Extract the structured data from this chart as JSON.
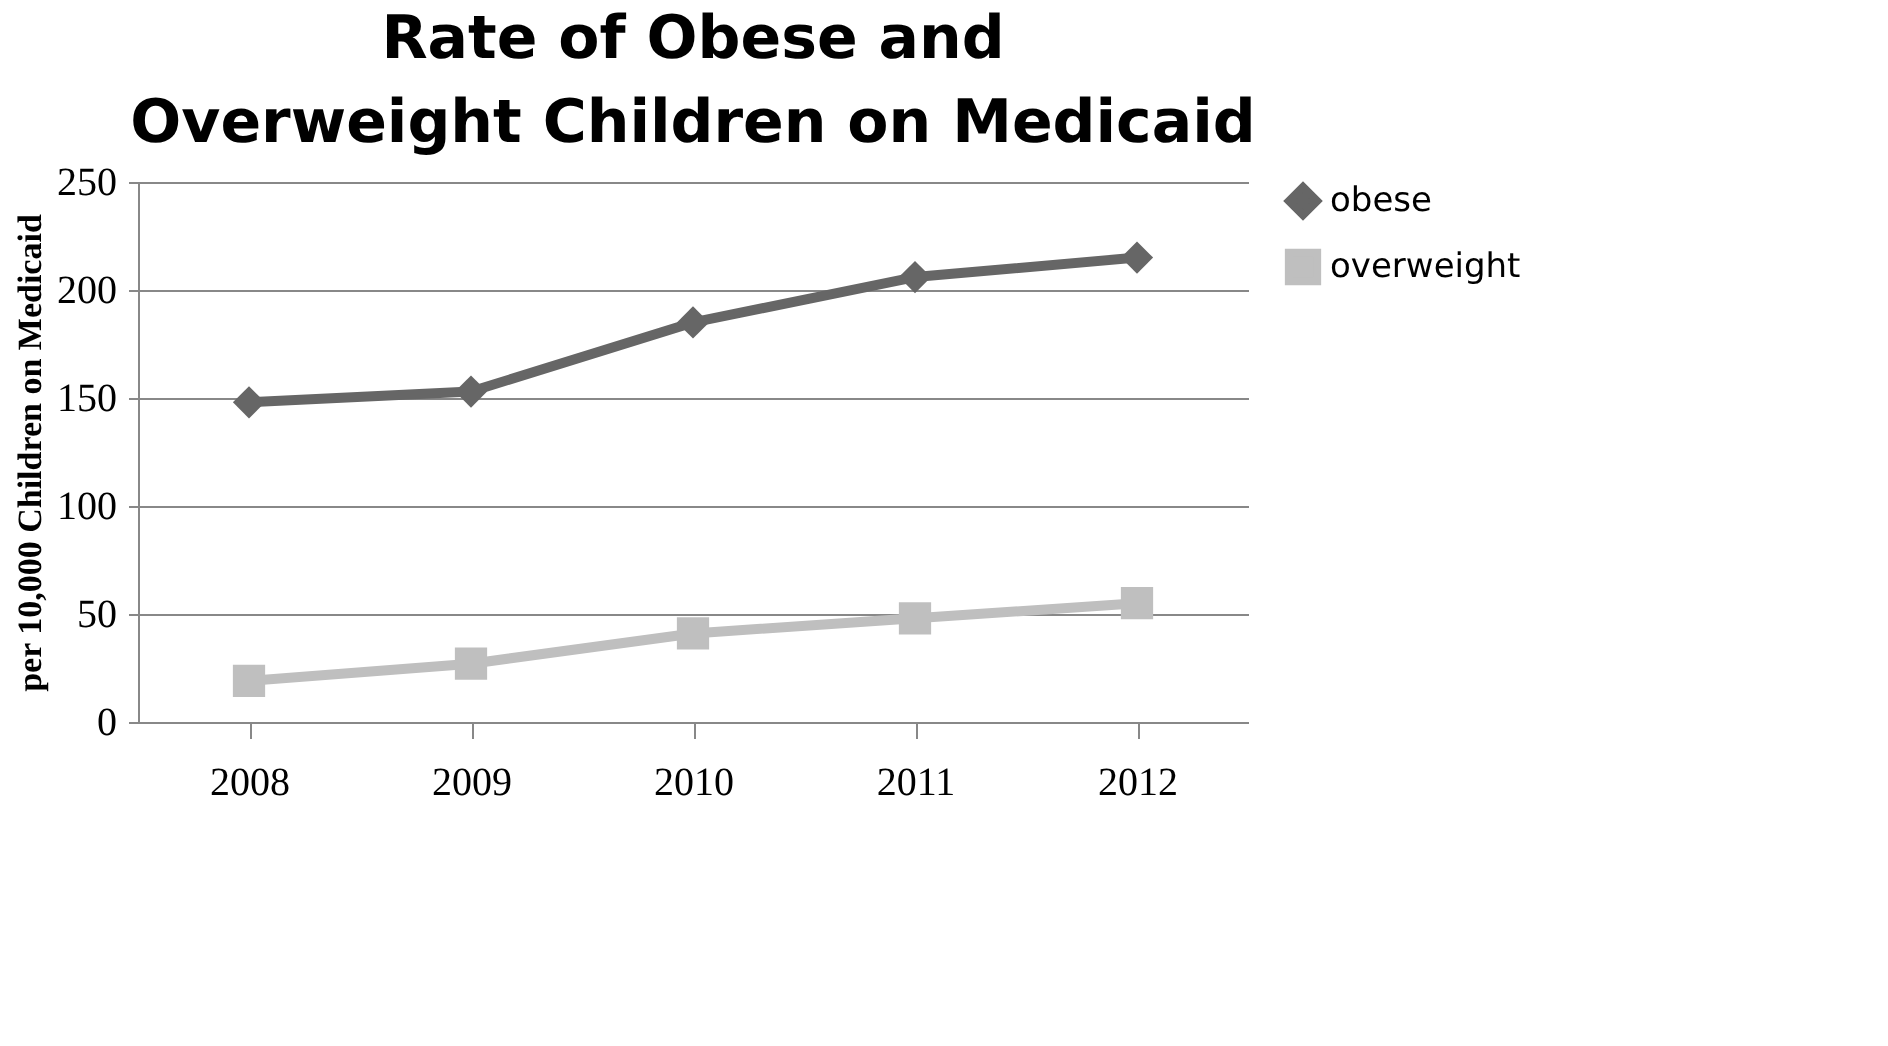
{
  "chart_data": {
    "type": "line",
    "title": "Rate of Obese and Overweight Children on Medicaid",
    "ylabel": "per 10,000 Children on Medicaid",
    "categories": [
      "2008",
      "2009",
      "2010",
      "2011",
      "2012"
    ],
    "series": [
      {
        "name": "obese",
        "color": "#666666",
        "marker": "diamond",
        "values": [
          148,
          153,
          185,
          206,
          215
        ]
      },
      {
        "name": "overweight",
        "color": "#bfbfbf",
        "marker": "square",
        "values": [
          19,
          27,
          41,
          48,
          55
        ]
      }
    ],
    "ylim": [
      0,
      250
    ],
    "yticks": [
      0,
      50,
      100,
      150,
      200,
      250
    ],
    "grid": "y",
    "legend": "right",
    "line_style": "solid"
  }
}
